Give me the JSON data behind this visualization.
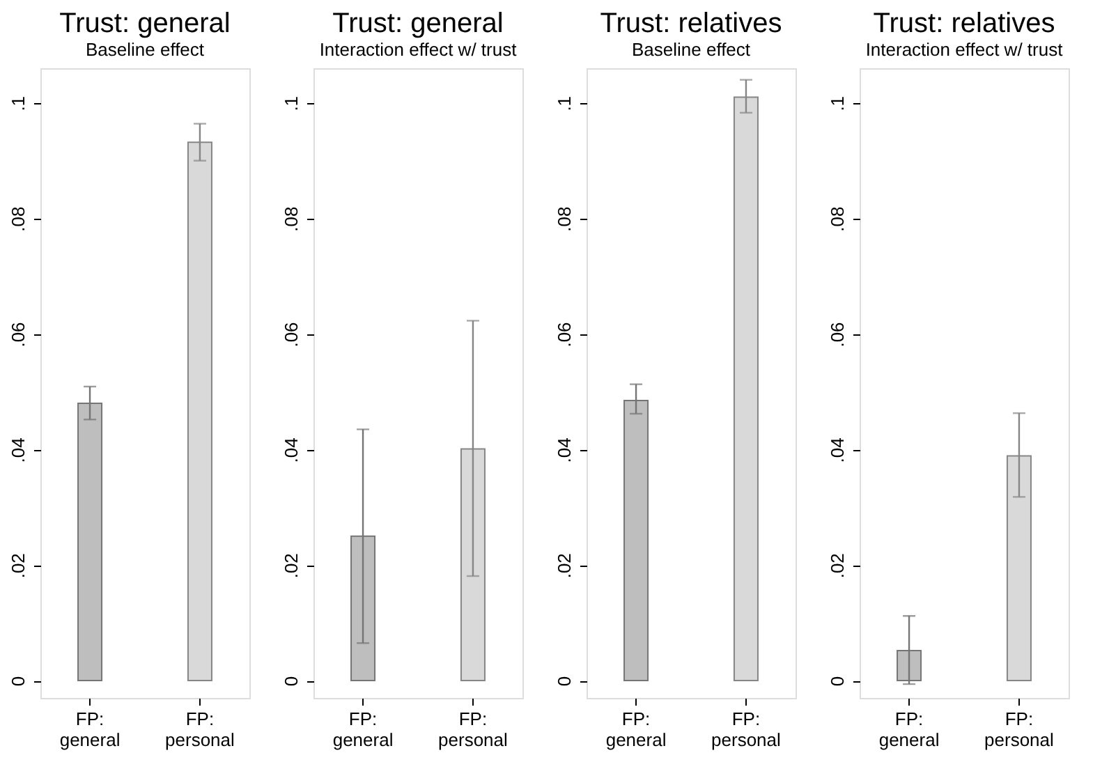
{
  "chart_data": [
    {
      "type": "bar",
      "title": "Trust: general",
      "subtitle": "Baseline effect",
      "categories": [
        "FP: general",
        "FP: personal"
      ],
      "values": [
        0.048,
        0.0932
      ],
      "colors": [
        "#bebebe",
        "#d9d9d9"
      ],
      "errors": [
        [
          0.0452,
          0.0509
        ],
        [
          0.09,
          0.0964
        ]
      ],
      "ylim": [
        -0.003,
        0.106
      ],
      "yticks": [
        0,
        {
          "value": 0.02,
          "label": ".02"
        },
        {
          "value": 0.04,
          "label": ".04"
        },
        {
          "value": 0.06,
          "label": ".06"
        },
        {
          "value": 0.08,
          "label": ".08"
        },
        {
          "value": 0.1,
          "label": ".1"
        }
      ],
      "grid": false
    },
    {
      "type": "bar",
      "title": "Trust: general",
      "subtitle": "Interaction effect w/ trust",
      "categories": [
        "FP: general",
        "FP: personal"
      ],
      "values": [
        0.025,
        0.0401
      ],
      "colors": [
        "#bebebe",
        "#d9d9d9"
      ],
      "errors": [
        [
          0.0065,
          0.0435
        ],
        [
          0.0181,
          0.0623
        ]
      ],
      "ylim": [
        -0.003,
        0.106
      ],
      "yticks": [
        0,
        {
          "value": 0.02,
          "label": ".02"
        },
        {
          "value": 0.04,
          "label": ".04"
        },
        {
          "value": 0.06,
          "label": ".06"
        },
        {
          "value": 0.08,
          "label": ".08"
        },
        {
          "value": 0.1,
          "label": ".1"
        }
      ],
      "grid": false
    },
    {
      "type": "bar",
      "title": "Trust: relatives",
      "subtitle": "Baseline effect",
      "categories": [
        "FP: general",
        "FP: personal"
      ],
      "values": [
        0.0485,
        0.101
      ],
      "colors": [
        "#bebebe",
        "#d9d9d9"
      ],
      "errors": [
        [
          0.0462,
          0.0513
        ],
        [
          0.0983,
          0.104
        ]
      ],
      "ylim": [
        -0.003,
        0.106
      ],
      "yticks": [
        0,
        {
          "value": 0.02,
          "label": ".02"
        },
        {
          "value": 0.04,
          "label": ".04"
        },
        {
          "value": 0.06,
          "label": ".06"
        },
        {
          "value": 0.08,
          "label": ".08"
        },
        {
          "value": 0.1,
          "label": ".1"
        }
      ],
      "grid": false
    },
    {
      "type": "bar",
      "title": "Trust: relatives",
      "subtitle": "Interaction effect w/ trust",
      "categories": [
        "FP: general",
        "FP: personal"
      ],
      "values": [
        0.0052,
        0.0389
      ],
      "colors": [
        "#bebebe",
        "#d9d9d9"
      ],
      "errors": [
        [
          -0.0006,
          0.0112
        ],
        [
          0.0318,
          0.0463
        ]
      ],
      "ylim": [
        -0.003,
        0.106
      ],
      "yticks": [
        0,
        {
          "value": 0.02,
          "label": ".02"
        },
        {
          "value": 0.04,
          "label": ".04"
        },
        {
          "value": 0.06,
          "label": ".06"
        },
        {
          "value": 0.08,
          "label": ".08"
        },
        {
          "value": 0.1,
          "label": ".1"
        }
      ],
      "grid": false
    }
  ]
}
